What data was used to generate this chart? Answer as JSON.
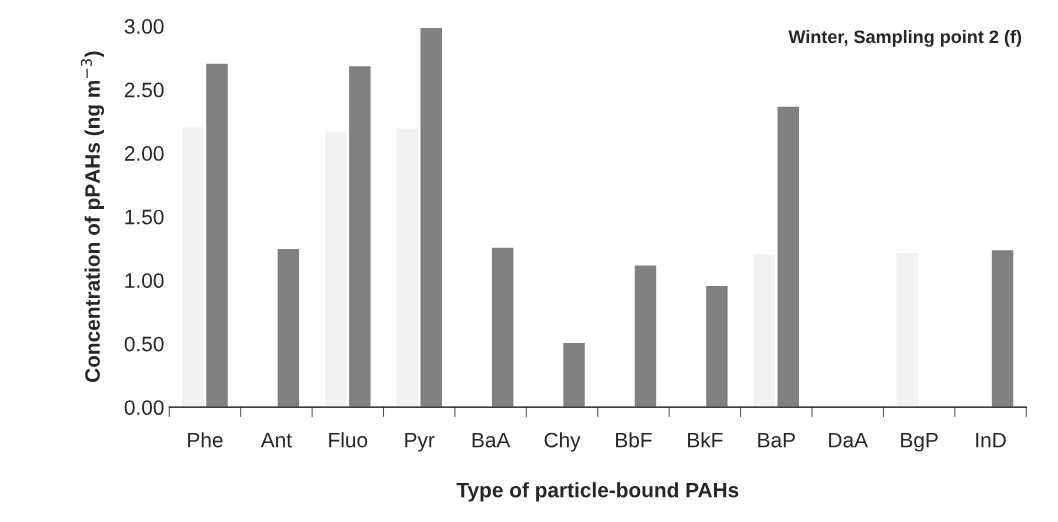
{
  "chart_data": {
    "type": "bar",
    "xlabel": "Type of particle-bound PAHs",
    "ylabel": "Concentration of pPAHs (ng m$^{−3}$)",
    "annotations": [
      "Winter, Sampling point 2 (f)"
    ],
    "categories": [
      "Phe",
      "Ant",
      "Fluo",
      "Pyr",
      "BaA",
      "Chy",
      "BbF",
      "BkF",
      "BaP",
      "DaA",
      "BgP",
      "InD"
    ],
    "series": [
      {
        "color": "#f2f2f2",
        "values": [
          2.21,
          null,
          2.17,
          2.2,
          null,
          null,
          null,
          null,
          1.21,
          null,
          1.22,
          null
        ]
      },
      {
        "color": "#808080",
        "values": [
          2.71,
          1.25,
          2.69,
          2.99,
          1.26,
          0.51,
          1.12,
          0.96,
          2.37,
          null,
          null,
          1.24
        ]
      }
    ],
    "ylim": [
      0,
      3
    ],
    "yticks": [
      {
        "value": 0,
        "label": "0.00"
      },
      {
        "value": 0.5,
        "label": "0.50"
      },
      {
        "value": 1,
        "label": "1.00"
      },
      {
        "value": 1.5,
        "label": "1.50"
      },
      {
        "value": 2,
        "label": "2.00"
      },
      {
        "value": 2.5,
        "label": "2.50"
      },
      {
        "value": 3,
        "label": "3.00"
      }
    ],
    "grid": false
  }
}
